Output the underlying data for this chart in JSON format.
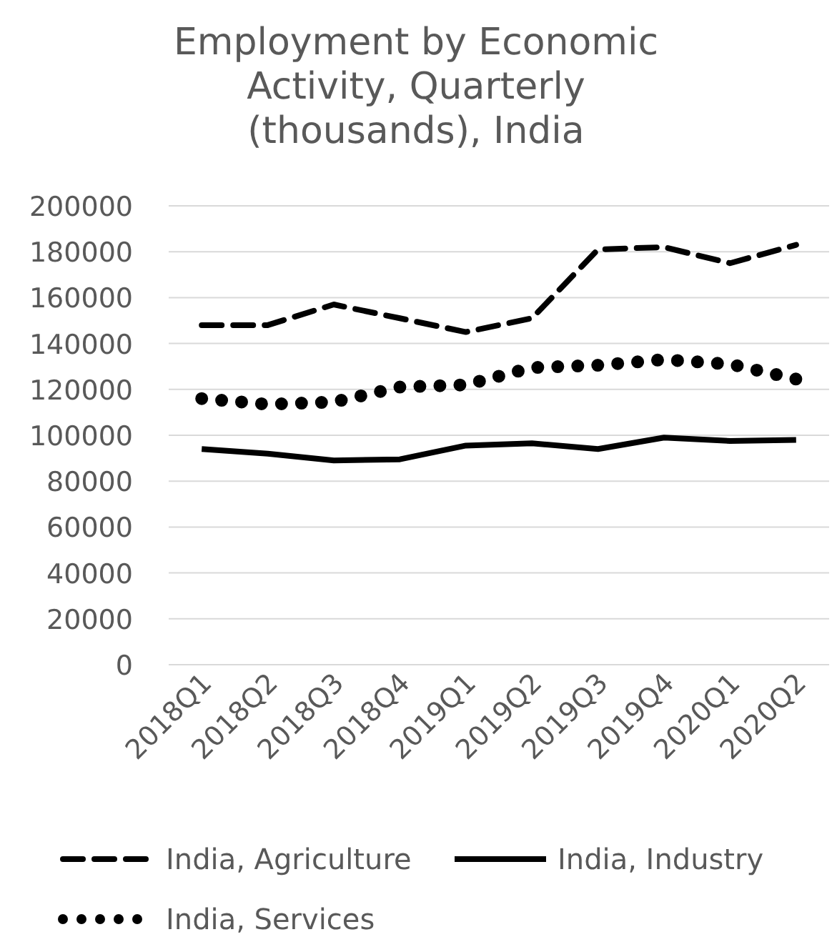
{
  "chart_data": {
    "type": "line",
    "title": "Employment by Economic Activity, Quarterly (thousands), India",
    "categories": [
      "2018Q1",
      "2018Q2",
      "2018Q3",
      "2018Q4",
      "2019Q1",
      "2019Q2",
      "2019Q3",
      "2019Q4",
      "2020Q1",
      "2020Q2"
    ],
    "series": [
      {
        "name": "India, Agriculture",
        "color": "#000000",
        "line_style": "dashed",
        "values": [
          148000,
          148000,
          157000,
          151000,
          145000,
          151000,
          181000,
          182000,
          175000,
          183000
        ]
      },
      {
        "name": "India, Industry",
        "color": "#000000",
        "line_style": "solid",
        "values": [
          94000,
          92000,
          89000,
          89500,
          95500,
          96500,
          94000,
          99000,
          97500,
          98000
        ]
      },
      {
        "name": "India, Services",
        "color": "#000000",
        "line_style": "dotted",
        "values": [
          116000,
          113500,
          114500,
          121000,
          122000,
          129500,
          130500,
          133000,
          131000,
          124500
        ]
      }
    ],
    "ylim": [
      0,
      200000
    ],
    "yticks": [
      0,
      20000,
      40000,
      60000,
      80000,
      100000,
      120000,
      140000,
      160000,
      180000,
      200000
    ],
    "grid": "y",
    "legend": "bottom"
  }
}
